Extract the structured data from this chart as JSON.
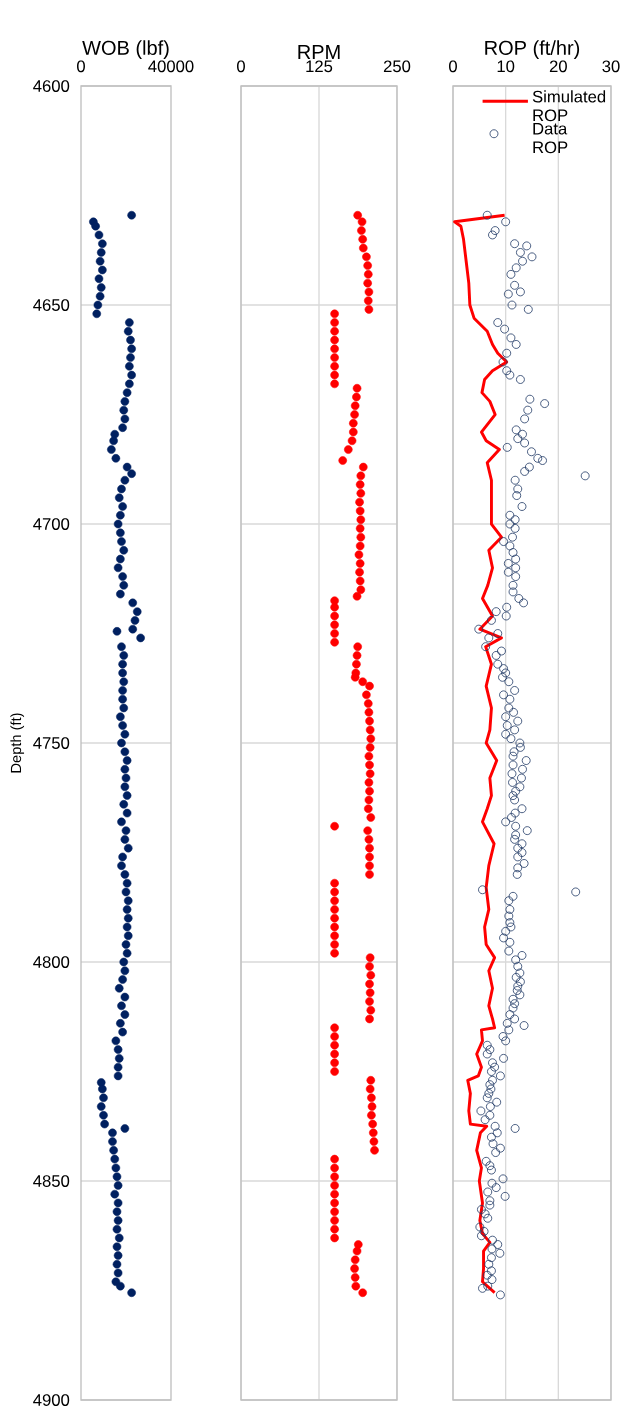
{
  "chart_data": [
    {
      "type": "scatter",
      "title": "WOB (lbf)",
      "ylabel": "Depth (ft)",
      "xlim": [
        0,
        40000
      ],
      "xticks": [
        0,
        40000
      ],
      "ylim": [
        4900,
        4600
      ],
      "yticks": [
        4600,
        4650,
        4700,
        4750,
        4800,
        4850,
        4900
      ],
      "grid": "y",
      "marker": "circle",
      "series": [
        {
          "color": "#002060",
          "x": [
            22500,
            5500,
            6500,
            8000,
            9500,
            9000,
            8500,
            9500,
            8000,
            9000,
            8500,
            7500,
            7000,
            21500,
            21000,
            22000,
            22500,
            22000,
            21500,
            22500,
            21500,
            20500,
            19500,
            19000,
            19500,
            18500,
            15000,
            14500,
            13500,
            15500,
            20500,
            22500,
            19500,
            18000,
            17000,
            18500,
            17500,
            16500,
            17500,
            18000,
            19000,
            17500,
            16500,
            18500,
            19000,
            17500,
            23000,
            25000,
            24000,
            16000,
            23000,
            26500,
            18000,
            19000,
            18500,
            18500,
            19000,
            18500,
            18500,
            19000,
            17500,
            18500,
            19500,
            18000,
            19500,
            20500,
            19500,
            20000,
            19500,
            20500,
            19000,
            20500,
            18000,
            20000,
            19500,
            21000,
            18500,
            18000,
            19500,
            20500,
            20000,
            21000,
            20500,
            21000,
            20500,
            21000,
            20000,
            20500,
            19000,
            19500,
            18500,
            17000,
            19500,
            18000,
            19500,
            17500,
            18500,
            15500,
            16500,
            17000,
            16500,
            16500,
            9000,
            9500,
            10000,
            9000,
            10000,
            10500,
            19500,
            14000,
            14000,
            14500,
            15000,
            15500,
            16000,
            16500,
            15000,
            16500,
            16000,
            16500,
            16000,
            17000,
            16000,
            16500,
            16000,
            16500,
            15500,
            17500,
            22500
          ],
          "values": [
            4629.5,
            4631,
            4632,
            4634,
            4636,
            4638,
            4640,
            4642,
            4644,
            4646,
            4648,
            4650,
            4652,
            4654,
            4656,
            4658,
            4660,
            4662,
            4664,
            4666,
            4668,
            4670,
            4672,
            4674,
            4676,
            4678,
            4679.5,
            4681,
            4683,
            4685,
            4687,
            4688.5,
            4690,
            4692,
            4694,
            4696,
            4698,
            4700,
            4702,
            4704,
            4706,
            4708,
            4710,
            4712,
            4714,
            4716,
            4718,
            4720,
            4722,
            4724.5,
            4724,
            4726,
            4728,
            4730,
            4732,
            4734,
            4736,
            4738,
            4740,
            4742,
            4744,
            4746,
            4748,
            4750,
            4752,
            4754,
            4756,
            4758,
            4760,
            4762,
            4764,
            4766,
            4768,
            4770,
            4772,
            4774,
            4776,
            4778,
            4780,
            4782,
            4784,
            4786,
            4788,
            4790,
            4792,
            4794,
            4796,
            4798,
            4800,
            4802,
            4804,
            4806,
            4808,
            4810,
            4812,
            4814,
            4816,
            4818,
            4820,
            4822,
            4824,
            4826,
            4827.5,
            4829,
            4831,
            4833,
            4835,
            4837,
            4838,
            4839,
            4841,
            4843,
            4845,
            4847,
            4849,
            4851,
            4853,
            4855,
            4857,
            4859,
            4861,
            4863,
            4865,
            4867,
            4869,
            4871,
            4873,
            4874,
            4875.5
          ]
        }
      ]
    },
    {
      "type": "scatter",
      "title": "RPM",
      "xlim": [
        0,
        250
      ],
      "xticks": [
        0,
        125,
        250
      ],
      "ylim": [
        4900,
        4600
      ],
      "yticks": [
        4600,
        4650,
        4700,
        4750,
        4800,
        4850,
        4900
      ],
      "grid": true,
      "marker": "circle",
      "tick_labels": "x",
      "series": [
        {
          "color": "#ff0000",
          "x": [
            187,
            194,
            193,
            195,
            196,
            201,
            203,
            204,
            203,
            205,
            204,
            205,
            150,
            150,
            150,
            150,
            150,
            150,
            150,
            150,
            150,
            186,
            185,
            183,
            182,
            180,
            180,
            178,
            172,
            163,
            196,
            192,
            191,
            192,
            190,
            191,
            192,
            191,
            192,
            191,
            189,
            191,
            190,
            191,
            192,
            186,
            150,
            150,
            150,
            150,
            150,
            150,
            187,
            186,
            185,
            184,
            183,
            195,
            206,
            201,
            204,
            205,
            206,
            207,
            208,
            207,
            205,
            206,
            207,
            205,
            206,
            205,
            204,
            208,
            150,
            203,
            205,
            206,
            206,
            206,
            206,
            150,
            150,
            150,
            150,
            150,
            150,
            150,
            150,
            150,
            207,
            206,
            208,
            206,
            207,
            206,
            208,
            206,
            150,
            150,
            150,
            150,
            150,
            150,
            208,
            207,
            209,
            210,
            209,
            211,
            212,
            213,
            214,
            150,
            150,
            150,
            150,
            150,
            150,
            150,
            150,
            150,
            150,
            188,
            186,
            183,
            182,
            183,
            184,
            195
          ],
          "values": [
            4629.5,
            4631,
            4633,
            4635,
            4637,
            4639,
            4641,
            4643,
            4645,
            4647,
            4649,
            4651,
            4652,
            4654,
            4656,
            4658,
            4660,
            4662,
            4664,
            4666,
            4668,
            4669,
            4671,
            4673,
            4675,
            4677,
            4679,
            4681,
            4683,
            4685.5,
            4687,
            4689,
            4691,
            4693,
            4695,
            4697,
            4699,
            4701,
            4703,
            4705,
            4707,
            4709,
            4711,
            4713,
            4715,
            4716.5,
            4717.5,
            4719,
            4721,
            4723,
            4725,
            4727,
            4728,
            4730,
            4732,
            4734,
            4735,
            4736,
            4737,
            4739,
            4741,
            4743,
            4745,
            4747,
            4749,
            4751,
            4753,
            4755,
            4757,
            4759,
            4761,
            4763,
            4765,
            4767,
            4769,
            4770,
            4772,
            4774,
            4776,
            4778,
            4780,
            4782,
            4784,
            4786,
            4788,
            4790,
            4792,
            4794,
            4796,
            4798,
            4799,
            4801,
            4803,
            4805,
            4807,
            4809,
            4811,
            4813,
            4815,
            4817,
            4819,
            4821,
            4823,
            4825,
            4827,
            4829,
            4831,
            4833,
            4835,
            4837,
            4839,
            4841,
            4843,
            4845,
            4847,
            4849,
            4851,
            4853,
            4855,
            4857,
            4859,
            4861,
            4863,
            4864.5,
            4866,
            4868,
            4870,
            4872,
            4874,
            4875.5
          ]
        }
      ]
    },
    {
      "type": "scatter",
      "title": "ROP  (ft/hr)",
      "xlim": [
        0,
        30
      ],
      "xticks": [
        0,
        10,
        20,
        30
      ],
      "ylim": [
        4900,
        4600
      ],
      "yticks": [
        4600,
        4650,
        4700,
        4750,
        4800,
        4850,
        4900
      ],
      "grid": true,
      "legend": "top right",
      "tick_labels": "x",
      "series": [
        {
          "name": "Simulated ROP",
          "type": "line",
          "line_style": "solid",
          "color": "#ff0000",
          "x": [
            9.8,
            0.3,
            1.5,
            2,
            2.5,
            3,
            3.2,
            4,
            6.5,
            7.5,
            8.5,
            10.2,
            7.5,
            6,
            5.5,
            7,
            8,
            5.4,
            6.3,
            8.8,
            6.5,
            7.3,
            7.3,
            9.2,
            6.8,
            7.5,
            6.6,
            5.6,
            7.5,
            5.1,
            9.2,
            6.2,
            7.3,
            6.3,
            7.3,
            7,
            6.3,
            8.3,
            7,
            7.3,
            6.5,
            5.6,
            7.8,
            6.8,
            6.3,
            6.8,
            6,
            6.3,
            7.9,
            6.8,
            7.5,
            6.8,
            7.5,
            7.9,
            5.4,
            5.6,
            4.5,
            5.4,
            4.8,
            2.8,
            3.3,
            3,
            3.3,
            6.4,
            5.2,
            4.5,
            5.4,
            5,
            5.6,
            5.1,
            5.6,
            7,
            5.8,
            5.8,
            5.6,
            7.9
          ],
          "values": [
            4629.5,
            4631,
            4632,
            4635,
            4640,
            4645,
            4650,
            4653,
            4656,
            4659,
            4661,
            4663,
            4665,
            4667,
            4670,
            4672,
            4675,
            4679,
            4681,
            4683,
            4686,
            4690,
            4700,
            4703,
            4706,
            4710,
            4714,
            4717,
            4721,
            4724,
            4726,
            4728,
            4732,
            4737,
            4742,
            4747,
            4750,
            4754,
            4758,
            4762,
            4765,
            4768,
            4773,
            4778,
            4783,
            4788,
            4792,
            4796,
            4799,
            4802,
            4806,
            4810,
            4813,
            4815,
            4815.5,
            4818,
            4821,
            4824,
            4826,
            4827,
            4830,
            4834,
            4837,
            4837.5,
            4839,
            4843,
            4847,
            4850,
            4855,
            4859,
            4862,
            4864,
            4866,
            4870,
            4873,
            4875.5
          ]
        },
        {
          "name": "Data ROP",
          "marker": "circle",
          "color": "#203864",
          "x": [
            6.5,
            10,
            8,
            7.5,
            11.7,
            14,
            12.8,
            15,
            13.2,
            12,
            11,
            11.7,
            10.5,
            12.8,
            11.2,
            14.3,
            8.5,
            9.8,
            11,
            12,
            10.2,
            9.5,
            10.2,
            10.8,
            12.8,
            14.6,
            17.4,
            14.2,
            13.6,
            12,
            13.2,
            12.3,
            13.6,
            10.3,
            14.9,
            16.1,
            17,
            14.5,
            13.6,
            25.1,
            11.8,
            12.3,
            12.1,
            13.1,
            10.8,
            11.8,
            10.8,
            11.8,
            11.3,
            9.6,
            10.8,
            11.4,
            11.9,
            10.5,
            11.9,
            10.5,
            11.9,
            11.4,
            11.4,
            12.5,
            13.4,
            10.2,
            8.2,
            10.1,
            7.3,
            4.9,
            8.5,
            6.8,
            6.2,
            9.2,
            8.2,
            8.5,
            9.6,
            10,
            9.4,
            10.6,
            11.7,
            9.6,
            10.8,
            10.6,
            11.5,
            10,
            12.3,
            10.3,
            11.7,
            10,
            11,
            12.7,
            12.8,
            11.6,
            11.4,
            13.9,
            11.4,
            13.2,
            11.2,
            13,
            11.3,
            12.7,
            11.9,
            11.4,
            11.7,
            13.1,
            11.8,
            11.1,
            10,
            11.9,
            14.1,
            11.9,
            11.7,
            13.1,
            12.3,
            13.1,
            12.3,
            13.5,
            12.3,
            12.2,
            5.6,
            23.3,
            11.4,
            10.6,
            10.8,
            10.6,
            10.8,
            11,
            10,
            9.6,
            10.8,
            10.6,
            13.1,
            11.9,
            12.3,
            12.7,
            12,
            12.8,
            12.3,
            12.2,
            12.7,
            11.4,
            11.7,
            11.4,
            10.8,
            11.7,
            10.3,
            13.5,
            10.6,
            9.5,
            10,
            6.5,
            7,
            6.5,
            9.6,
            7.5,
            7.9,
            7.3,
            9,
            7.5,
            7,
            7.2,
            6.8,
            6.5,
            8.3,
            7.1,
            5.3,
            7,
            6.1,
            8,
            11.8,
            8.4,
            7.3,
            7.6,
            9,
            8.1,
            6.3,
            7,
            7.3,
            9.5,
            7.4,
            8.2,
            6.6,
            9.9,
            7,
            7,
            5.4,
            6.1,
            6.6,
            5.1,
            5.9,
            5.4,
            7.5,
            8.5,
            7.4,
            8.9,
            7.3,
            6.8,
            7.3,
            6.5,
            7.4,
            6.6,
            5.6,
            9
          ],
          "values": [
            4629.5,
            4631,
            4633,
            4634,
            4636,
            4636.5,
            4638,
            4639,
            4640,
            4641.5,
            4643,
            4645.5,
            4647.5,
            4647,
            4650,
            4651,
            4654,
            4655.5,
            4657.5,
            4659,
            4661,
            4663,
            4665,
            4666,
            4667,
            4671.5,
            4672.5,
            4674,
            4676,
            4678.5,
            4679.5,
            4680.5,
            4681.5,
            4682.5,
            4683.5,
            4685,
            4685.5,
            4687,
            4688,
            4689,
            4690,
            4692,
            4693.5,
            4696,
            4698,
            4699,
            4700,
            4701,
            4703,
            4704,
            4705,
            4706.5,
            4708,
            4709,
            4710,
            4711,
            4712,
            4714,
            4715.5,
            4717,
            4718,
            4719,
            4720,
            4721,
            4722,
            4724,
            4725,
            4726,
            4728,
            4729,
            4730,
            4732,
            4733,
            4734,
            4735,
            4736,
            4738,
            4739,
            4740,
            4742,
            4743,
            4744,
            4745,
            4746,
            4747,
            4748,
            4749,
            4750,
            4751,
            4752,
            4753,
            4754,
            4755,
            4756,
            4757,
            4758,
            4759,
            4760,
            4761,
            4762,
            4763,
            4765,
            4766,
            4767,
            4768,
            4769,
            4770,
            4771,
            4772,
            4773,
            4774,
            4775,
            4776,
            4777.5,
            4778.5,
            4780,
            4783.5,
            4784,
            4785,
            4786,
            4788,
            4789.5,
            4791,
            4792,
            4793,
            4794.5,
            4795.5,
            4797.5,
            4798.5,
            4799.5,
            4801,
            4802.5,
            4803.5,
            4804.5,
            4805.5,
            4806.5,
            4807.5,
            4808.5,
            4809.5,
            4810.5,
            4812,
            4813,
            4814,
            4814.5,
            4815.5,
            4817,
            4818,
            4819,
            4820,
            4821,
            4822,
            4823,
            4824,
            4825,
            4826,
            4827,
            4828,
            4829,
            4830,
            4831,
            4832,
            4833,
            4834,
            4835,
            4836,
            4837.5,
            4838,
            4839,
            4840,
            4841.5,
            4842.5,
            4843.5,
            4845.5,
            4846.5,
            4847.5,
            4849.5,
            4850.5,
            4851.5,
            4852.5,
            4853.5,
            4854.5,
            4855.5,
            4856.5,
            4857.5,
            4858.5,
            4860.5,
            4861.5,
            4862.5,
            4863.5,
            4864.5,
            4865.5,
            4866.5,
            4867.5,
            4869,
            4870.5,
            4871.5,
            4872.5,
            4874,
            4874.5,
            4876
          ]
        }
      ]
    }
  ]
}
